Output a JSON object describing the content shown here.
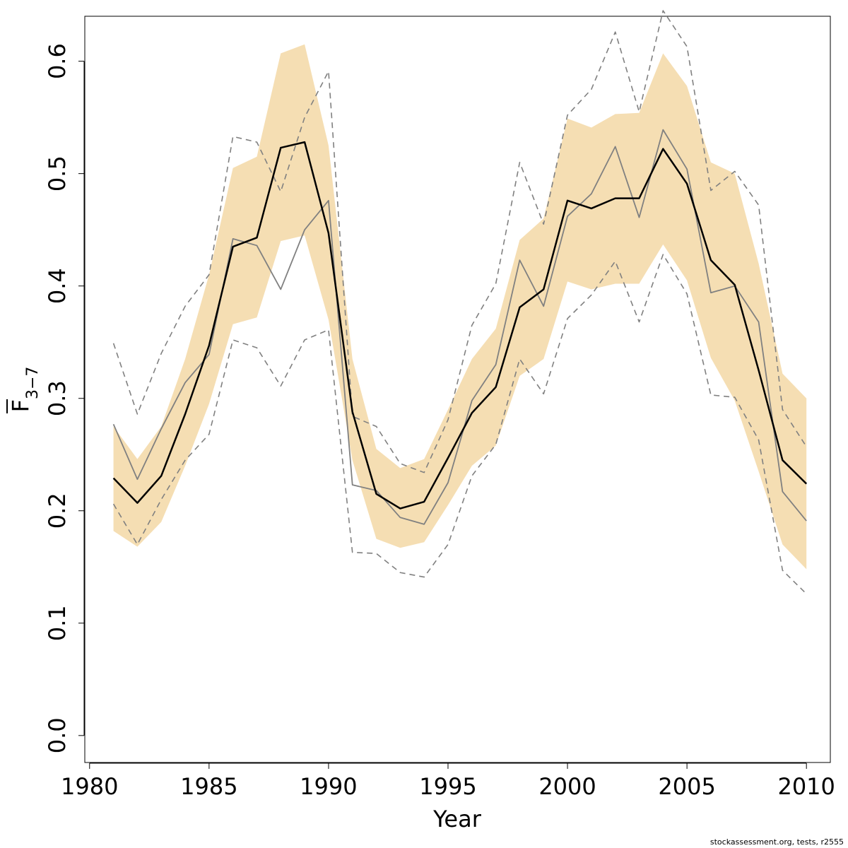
{
  "footnote": "stockassessment.org, tests, r2555",
  "chart_data": {
    "type": "line",
    "xlabel": "Year",
    "ylabel": {
      "base": "F",
      "subscript": "3−7"
    },
    "xlim": [
      1979.8,
      2011.0
    ],
    "ylim": [
      -0.024,
      0.64
    ],
    "x_ticks": [
      1980,
      1985,
      1990,
      1995,
      2000,
      2005,
      2010
    ],
    "y_ticks": [
      0.0,
      0.1,
      0.2,
      0.3,
      0.4,
      0.5,
      0.6
    ],
    "y_tick_labels": [
      "0.0",
      "0.1",
      "0.2",
      "0.3",
      "0.4",
      "0.5",
      "0.6"
    ],
    "grid": false,
    "colors": {
      "band": "#f5deb3",
      "estimate": "#000000",
      "comparison": "#808080"
    },
    "x": [
      1981,
      1982,
      1983,
      1984,
      1985,
      1986,
      1987,
      1988,
      1989,
      1990,
      1991,
      1992,
      1993,
      1994,
      1995,
      1996,
      1997,
      1998,
      1999,
      2000,
      2001,
      2002,
      2003,
      2004,
      2005,
      2006,
      2007,
      2008,
      2009,
      2010
    ],
    "band_lower": [
      0.182,
      0.168,
      0.19,
      0.24,
      0.295,
      0.366,
      0.372,
      0.44,
      0.445,
      0.37,
      0.245,
      0.175,
      0.167,
      0.172,
      0.205,
      0.24,
      0.258,
      0.32,
      0.335,
      0.404,
      0.397,
      0.402,
      0.402,
      0.437,
      0.405,
      0.336,
      0.298,
      0.235,
      0.17,
      0.148
    ],
    "band_upper": [
      0.275,
      0.246,
      0.275,
      0.335,
      0.41,
      0.505,
      0.515,
      0.607,
      0.615,
      0.525,
      0.335,
      0.255,
      0.238,
      0.246,
      0.29,
      0.335,
      0.362,
      0.441,
      0.46,
      0.549,
      0.541,
      0.553,
      0.554,
      0.607,
      0.578,
      0.51,
      0.5,
      0.42,
      0.322,
      0.3
    ],
    "series": [
      {
        "values": [
          0.229,
          0.207,
          0.231,
          0.286,
          0.347,
          0.435,
          0.443,
          0.523,
          0.528,
          0.447,
          0.288,
          0.215,
          0.202,
          0.208,
          0.247,
          0.287,
          0.31,
          0.381,
          0.397,
          0.476,
          0.469,
          0.478,
          0.478,
          0.522,
          0.491,
          0.423,
          0.401,
          0.325,
          0.245,
          0.224
        ]
      },
      {
        "values": [
          0.277,
          0.228,
          0.273,
          0.314,
          0.339,
          0.442,
          0.436,
          0.397,
          0.45,
          0.476,
          0.223,
          0.218,
          0.194,
          0.188,
          0.225,
          0.298,
          0.33,
          0.423,
          0.382,
          0.462,
          0.482,
          0.524,
          0.461,
          0.539,
          0.504,
          0.394,
          0.4,
          0.368,
          0.217,
          0.191
        ]
      },
      {
        "values": [
          0.349,
          0.286,
          0.34,
          0.382,
          0.41,
          0.533,
          0.528,
          0.484,
          0.55,
          0.591,
          0.284,
          0.275,
          0.242,
          0.234,
          0.281,
          0.365,
          0.402,
          0.51,
          0.455,
          0.552,
          0.575,
          0.626,
          0.555,
          0.645,
          0.613,
          0.485,
          0.502,
          0.472,
          0.29,
          0.257
        ]
      },
      {
        "values": [
          0.206,
          0.17,
          0.21,
          0.245,
          0.268,
          0.352,
          0.345,
          0.311,
          0.352,
          0.361,
          0.163,
          0.162,
          0.145,
          0.141,
          0.17,
          0.231,
          0.259,
          0.335,
          0.304,
          0.371,
          0.392,
          0.422,
          0.368,
          0.428,
          0.393,
          0.303,
          0.301,
          0.263,
          0.147,
          0.126
        ]
      }
    ]
  }
}
